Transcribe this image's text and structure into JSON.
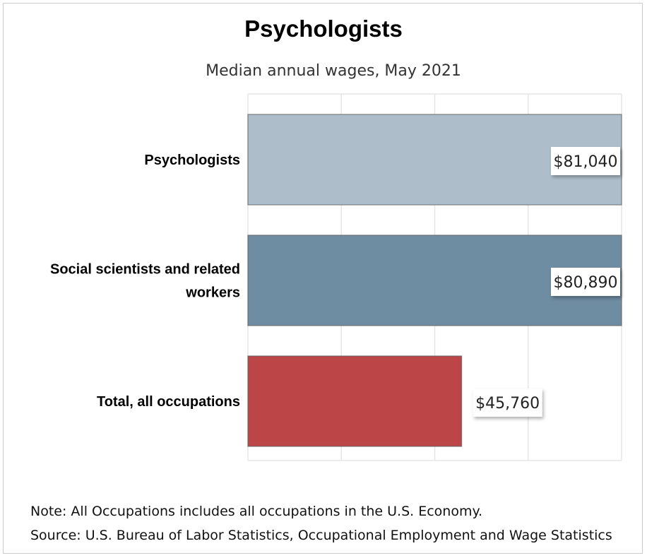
{
  "chart_data": {
    "type": "bar",
    "orientation": "horizontal",
    "title": "Psychologists",
    "subtitle": "Median annual wages, May 2021",
    "categories": [
      "Psychologists",
      "Social scientists and related workers",
      "Total, all occupations"
    ],
    "values": [
      81040,
      80890,
      45760
    ],
    "value_labels": [
      "$81,040",
      "$80,890",
      "$45,760"
    ],
    "colors": [
      "#adbeca",
      "#6e8ca2",
      "#bc4547"
    ],
    "xlim": [
      0,
      80000
    ],
    "grid": true
  },
  "footer": {
    "note": "Note: All Occupations includes all occupations in the U.S. Economy.",
    "source": "Source: U.S. Bureau of Labor Statistics, Occupational Employment and Wage Statistics"
  }
}
